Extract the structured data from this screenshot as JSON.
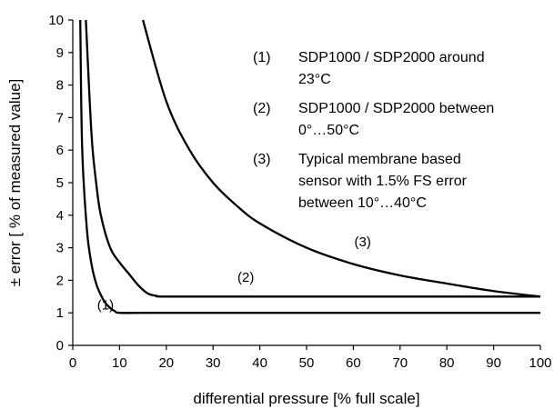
{
  "chart_data": {
    "type": "line",
    "xlabel": "differential pressure [% full scale]",
    "ylabel": "± error [ % of measured value]",
    "xlim": [
      0,
      100
    ],
    "ylim": [
      0,
      10
    ],
    "xticks": [
      0,
      10,
      20,
      30,
      40,
      50,
      60,
      70,
      80,
      90,
      100
    ],
    "yticks": [
      0,
      1,
      2,
      3,
      4,
      5,
      6,
      7,
      8,
      9,
      10
    ],
    "grid": false,
    "legend": {
      "placement": "top-right",
      "entries": [
        {
          "key": "(1)",
          "lines": [
            "SDP1000 / SDP2000 around",
            "23°C"
          ]
        },
        {
          "key": "(2)",
          "lines": [
            "SDP1000 / SDP2000 between",
            "0°…50°C"
          ]
        },
        {
          "key": "(3)",
          "lines": [
            "Typical membrane based",
            "sensor with 1.5% FS error",
            "between 10°…40°C"
          ]
        }
      ]
    },
    "series": [
      {
        "label": "(1)",
        "label_at": [
          7,
          1.1
        ],
        "points": [
          [
            1.6,
            10
          ],
          [
            2,
            6.1
          ],
          [
            3,
            3.6
          ],
          [
            4,
            2.5
          ],
          [
            5,
            1.9
          ],
          [
            6,
            1.55
          ],
          [
            7,
            1.3
          ],
          [
            8,
            1.15
          ],
          [
            9,
            1.05
          ],
          [
            10,
            1.0
          ],
          [
            15,
            1.0
          ],
          [
            30,
            1.0
          ],
          [
            60,
            1.0
          ],
          [
            100,
            1.0
          ]
        ]
      },
      {
        "label": "(2)",
        "label_at": [
          37,
          1.95
        ],
        "points": [
          [
            2.8,
            10
          ],
          [
            4,
            6.5
          ],
          [
            5,
            5.0
          ],
          [
            6,
            4.0
          ],
          [
            8,
            3.0
          ],
          [
            10,
            2.55
          ],
          [
            12,
            2.2
          ],
          [
            14,
            1.85
          ],
          [
            16,
            1.6
          ],
          [
            18,
            1.52
          ],
          [
            20,
            1.5
          ],
          [
            40,
            1.5
          ],
          [
            70,
            1.5
          ],
          [
            100,
            1.5
          ]
        ]
      },
      {
        "label": "(3)",
        "label_at": [
          62,
          3.05
        ],
        "points": [
          [
            15,
            10
          ],
          [
            20,
            7.5
          ],
          [
            25,
            6.0
          ],
          [
            30,
            5.0
          ],
          [
            35,
            4.3
          ],
          [
            40,
            3.75
          ],
          [
            50,
            3.0
          ],
          [
            60,
            2.5
          ],
          [
            70,
            2.15
          ],
          [
            80,
            1.9
          ],
          [
            90,
            1.67
          ],
          [
            100,
            1.5
          ]
        ]
      }
    ]
  }
}
